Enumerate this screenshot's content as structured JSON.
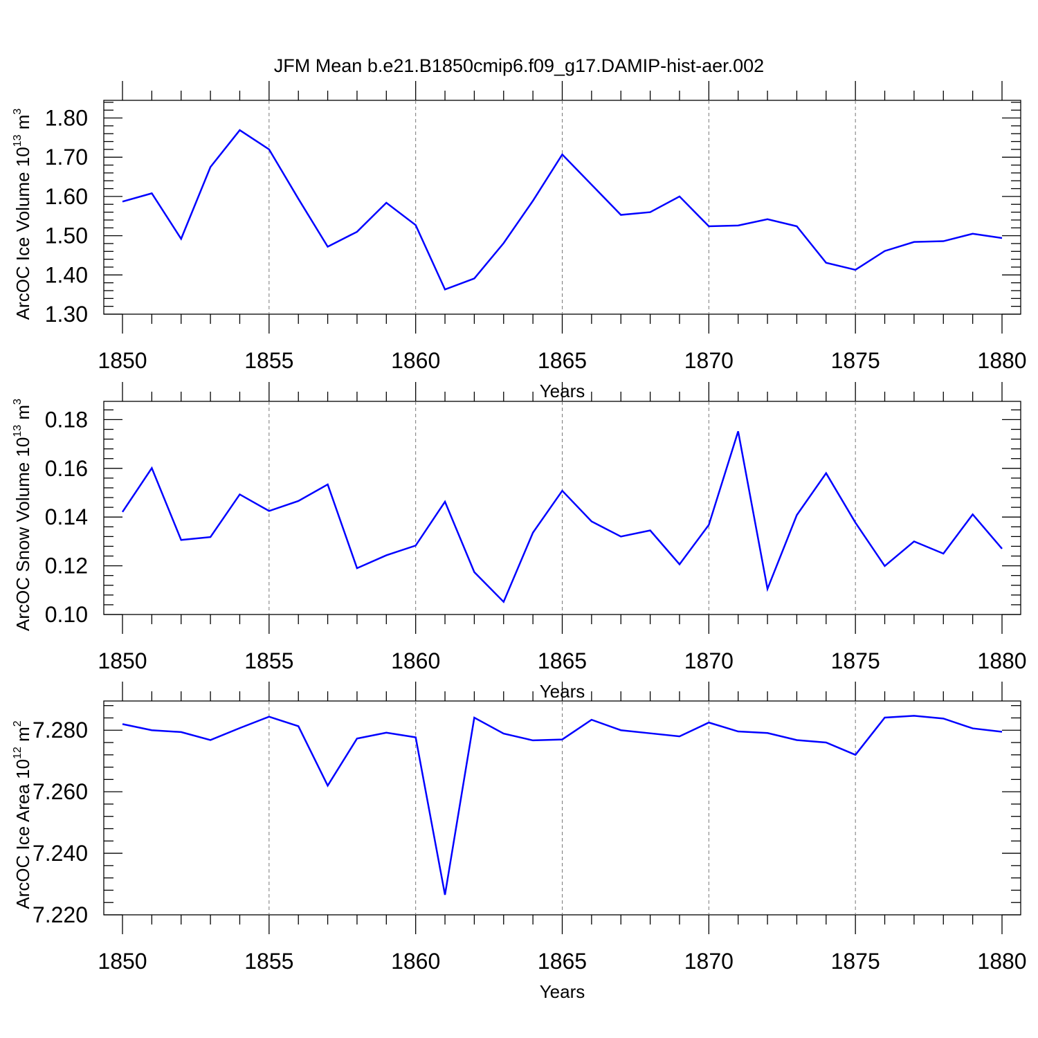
{
  "title": "JFM Mean b.e21.B1850cmip6.f09_g17.DAMIP-hist-aer.002",
  "colors": {
    "series": "#0000ff",
    "axis": "#000000",
    "grid": "#777777"
  },
  "chart_data": [
    {
      "type": "line",
      "title": "JFM Mean b.e21.B1850cmip6.f09_g17.DAMIP-hist-aer.002",
      "xlabel": "Years",
      "ylabel": "ArcOC Ice Volume 10",
      "ylabel_sup": "13",
      "ylabel_unit": "m",
      "ylabel_unit_sup": "3",
      "xlim": [
        1850,
        1880
      ],
      "ylim": [
        1.3,
        1.845
      ],
      "xticks": [
        1850,
        1855,
        1860,
        1865,
        1870,
        1875,
        1880
      ],
      "xtick_labels": [
        "1850",
        "1855",
        "1860",
        "1865",
        "1870",
        "1875",
        "1880"
      ],
      "yticks": [
        1.3,
        1.4,
        1.5,
        1.6,
        1.7,
        1.8
      ],
      "ytick_labels": [
        "1.30",
        "1.40",
        "1.50",
        "1.60",
        "1.70",
        "1.80"
      ],
      "x": [
        1850,
        1851,
        1852,
        1853,
        1854,
        1855,
        1856,
        1857,
        1858,
        1859,
        1860,
        1861,
        1862,
        1863,
        1864,
        1865,
        1866,
        1867,
        1868,
        1869,
        1870,
        1871,
        1872,
        1873,
        1874,
        1875,
        1876,
        1877,
        1878,
        1879,
        1880
      ],
      "values": [
        1.587,
        1.608,
        1.492,
        1.675,
        1.769,
        1.72,
        1.594,
        1.472,
        1.51,
        1.584,
        1.527,
        1.363,
        1.391,
        1.481,
        1.589,
        1.707,
        1.63,
        1.553,
        1.56,
        1.6,
        1.524,
        1.526,
        1.542,
        1.524,
        1.431,
        1.413,
        1.461,
        1.484,
        1.486,
        1.505,
        1.494
      ],
      "grid": "vertical dashed at major x ticks"
    },
    {
      "type": "line",
      "xlabel": "Years",
      "ylabel": "ArcOC Snow Volume 10",
      "ylabel_sup": "13",
      "ylabel_unit": "m",
      "ylabel_unit_sup": "3",
      "xlim": [
        1850,
        1880
      ],
      "ylim": [
        0.1,
        0.1875
      ],
      "xticks": [
        1850,
        1855,
        1860,
        1865,
        1870,
        1875,
        1880
      ],
      "xtick_labels": [
        "1850",
        "1855",
        "1860",
        "1865",
        "1870",
        "1875",
        "1880"
      ],
      "yticks": [
        0.1,
        0.12,
        0.14,
        0.16,
        0.18
      ],
      "ytick_labels": [
        "0.10",
        "0.12",
        "0.14",
        "0.16",
        "0.18"
      ],
      "x": [
        1850,
        1851,
        1852,
        1853,
        1854,
        1855,
        1856,
        1857,
        1858,
        1859,
        1860,
        1861,
        1862,
        1863,
        1864,
        1865,
        1866,
        1867,
        1868,
        1869,
        1870,
        1871,
        1872,
        1873,
        1874,
        1875,
        1876,
        1877,
        1878,
        1879,
        1880
      ],
      "values": [
        0.1421,
        0.1601,
        0.1306,
        0.1318,
        0.1493,
        0.1425,
        0.1466,
        0.1534,
        0.119,
        0.1243,
        0.1283,
        0.1463,
        0.1174,
        0.1052,
        0.1336,
        0.1508,
        0.1382,
        0.132,
        0.1345,
        0.1206,
        0.1368,
        0.1752,
        0.1105,
        0.1408,
        0.158,
        0.1377,
        0.1199,
        0.13,
        0.125,
        0.1411,
        0.127
      ],
      "grid": "vertical dashed at major x ticks"
    },
    {
      "type": "line",
      "xlabel": "Years",
      "ylabel": "ArcOC Ice Area 10",
      "ylabel_sup": "12",
      "ylabel_unit": "m",
      "ylabel_unit_sup": "2",
      "xlim": [
        1850,
        1880
      ],
      "ylim": [
        7.22,
        7.2895
      ],
      "xticks": [
        1850,
        1855,
        1860,
        1865,
        1870,
        1875,
        1880
      ],
      "xtick_labels": [
        "1850",
        "1855",
        "1860",
        "1865",
        "1870",
        "1875",
        "1880"
      ],
      "yticks": [
        7.22,
        7.24,
        7.26,
        7.28
      ],
      "ytick_labels": [
        "7.220",
        "7.240",
        "7.260",
        "7.280"
      ],
      "x": [
        1850,
        1851,
        1852,
        1853,
        1854,
        1855,
        1856,
        1857,
        1858,
        1859,
        1860,
        1861,
        1862,
        1863,
        1864,
        1865,
        1866,
        1867,
        1868,
        1869,
        1870,
        1871,
        1872,
        1873,
        1874,
        1875,
        1876,
        1877,
        1878,
        1879,
        1880
      ],
      "values": [
        7.282,
        7.28,
        7.2794,
        7.2768,
        7.2807,
        7.2844,
        7.2813,
        7.262,
        7.2773,
        7.2792,
        7.2777,
        7.2265,
        7.2841,
        7.2789,
        7.2767,
        7.277,
        7.2834,
        7.28,
        7.279,
        7.278,
        7.2825,
        7.2796,
        7.2791,
        7.2768,
        7.276,
        7.272,
        7.2841,
        7.2847,
        7.2838,
        7.2806,
        7.2795
      ],
      "grid": "vertical dashed at major x ticks"
    }
  ]
}
